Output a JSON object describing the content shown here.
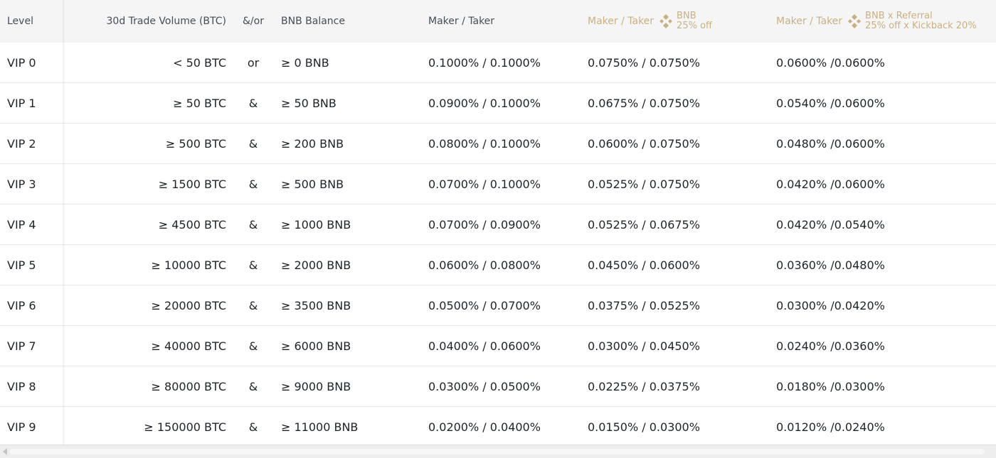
{
  "header": {
    "level": "Level",
    "volume": "30d Trade Volume (BTC)",
    "op": "&/or",
    "balance": "BNB Balance",
    "maker_taker": "Maker / Taker",
    "bnb_col": {
      "prefix": "Maker / Taker",
      "line1": "BNB",
      "line2": "25% off"
    },
    "ref_col": {
      "prefix": "Maker / Taker",
      "line1": "BNB x Referral",
      "line2": "25% off x Kickback 20%"
    }
  },
  "rows": [
    {
      "level": "VIP 0",
      "volume": "< 50 BTC",
      "op": "or",
      "balance": "≥ 0 BNB",
      "maker_taker": "0.1000% / 0.1000%",
      "bnb": "0.0750% / 0.0750%",
      "ref": "0.0600% /0.0600%"
    },
    {
      "level": "VIP 1",
      "volume": "≥ 50 BTC",
      "op": "&",
      "balance": "≥ 50 BNB",
      "maker_taker": "0.0900% / 0.1000%",
      "bnb": "0.0675% / 0.0750%",
      "ref": "0.0540% /0.0600%"
    },
    {
      "level": "VIP 2",
      "volume": "≥ 500 BTC",
      "op": "&",
      "balance": "≥ 200 BNB",
      "maker_taker": "0.0800% / 0.1000%",
      "bnb": "0.0600% / 0.0750%",
      "ref": "0.0480% /0.0600%"
    },
    {
      "level": "VIP 3",
      "volume": "≥ 1500 BTC",
      "op": "&",
      "balance": "≥ 500 BNB",
      "maker_taker": "0.0700% / 0.1000%",
      "bnb": "0.0525% / 0.0750%",
      "ref": "0.0420% /0.0600%"
    },
    {
      "level": "VIP 4",
      "volume": "≥ 4500 BTC",
      "op": "&",
      "balance": "≥ 1000 BNB",
      "maker_taker": "0.0700% / 0.0900%",
      "bnb": "0.0525% / 0.0675%",
      "ref": "0.0420% /0.0540%"
    },
    {
      "level": "VIP 5",
      "volume": "≥ 10000 BTC",
      "op": "&",
      "balance": "≥ 2000 BNB",
      "maker_taker": "0.0600% / 0.0800%",
      "bnb": "0.0450% / 0.0600%",
      "ref": "0.0360% /0.0480%"
    },
    {
      "level": "VIP 6",
      "volume": "≥ 20000 BTC",
      "op": "&",
      "balance": "≥ 3500 BNB",
      "maker_taker": "0.0500% / 0.0700%",
      "bnb": "0.0375% / 0.0525%",
      "ref": "0.0300% /0.0420%"
    },
    {
      "level": "VIP 7",
      "volume": "≥ 40000 BTC",
      "op": "&",
      "balance": "≥ 6000 BNB",
      "maker_taker": "0.0400% / 0.0600%",
      "bnb": "0.0300% / 0.0450%",
      "ref": "0.0240% /0.0360%"
    },
    {
      "level": "VIP 8",
      "volume": "≥ 80000 BTC",
      "op": "&",
      "balance": "≥ 9000 BNB",
      "maker_taker": "0.0300% / 0.0500%",
      "bnb": "0.0225% / 0.0375%",
      "ref": "0.0180% /0.0300%"
    },
    {
      "level": "VIP 9",
      "volume": "≥ 150000 BTC",
      "op": "&",
      "balance": "≥ 11000 BNB",
      "maker_taker": "0.0200% / 0.0400%",
      "bnb": "0.0150% / 0.0300%",
      "ref": "0.0120% /0.0240%"
    }
  ],
  "icons": {
    "bnb": "bnb-logo-icon",
    "scroll_left": "arrow-left-icon"
  },
  "colors": {
    "accent_gold": "#c9b083",
    "header_bg": "#f5f5f5",
    "text": "#1e2329"
  }
}
